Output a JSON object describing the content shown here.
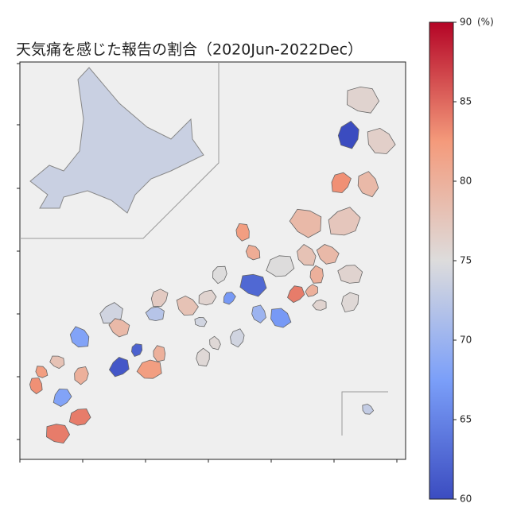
{
  "chart_data": {
    "type": "choropleth",
    "title": "天気痛を感じた報告の割合（2020Jun-2022Dec）",
    "colormap": "coolwarm",
    "values": [
      73.5,
      76,
      76.5,
      79,
      60,
      83,
      77.5,
      76,
      79,
      78,
      80,
      75.5,
      80,
      76,
      79,
      80.5,
      82,
      75,
      84,
      75,
      62.5,
      67,
      70,
      74,
      67,
      76,
      74,
      78,
      75.5,
      75.5,
      77,
      74,
      72,
      79,
      68,
      80,
      62,
      61,
      82,
      78,
      82,
      83,
      80,
      68,
      84,
      84,
      73
    ],
    "colorbar": {
      "lim": [
        60,
        90
      ],
      "ticks": [
        60,
        65,
        70,
        75,
        80,
        85,
        90
      ],
      "unit_label": "(%)"
    }
  }
}
